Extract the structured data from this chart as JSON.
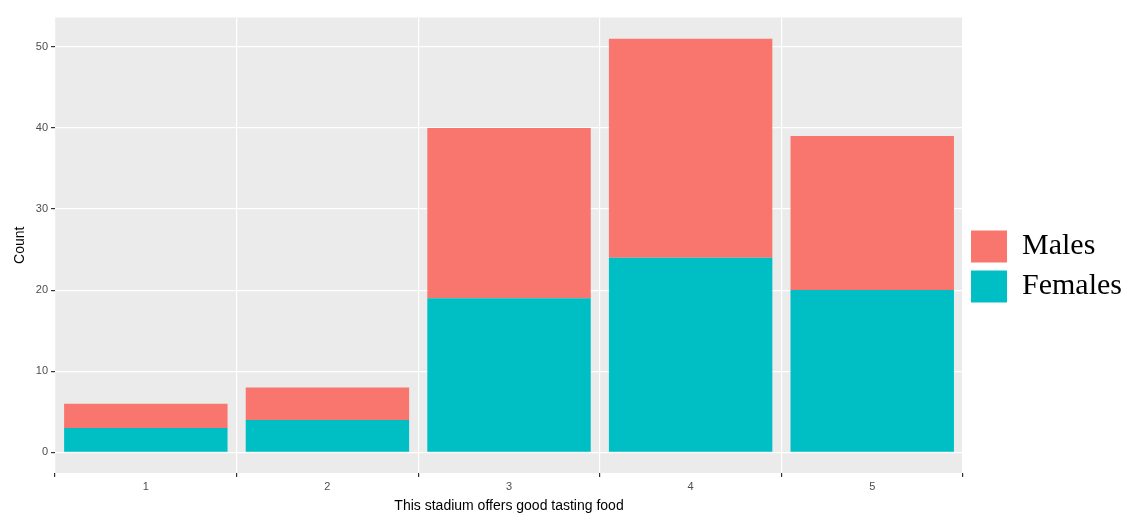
{
  "chart_data": {
    "type": "bar",
    "xlabel": "This stadium offers good tasting food",
    "ylabel": "Count",
    "categories": [
      "1",
      "2",
      "3",
      "4",
      "5"
    ],
    "stacked": true,
    "series": [
      {
        "name": "Females",
        "color": "#00bfc4",
        "values": [
          3,
          4,
          19,
          24,
          20
        ]
      },
      {
        "name": "Males",
        "color": "#f8766d",
        "values": [
          3,
          4,
          21,
          27,
          19
        ]
      }
    ],
    "ylim": [
      -2.55,
      53.6
    ],
    "yticks": [
      0,
      10,
      20,
      30,
      40,
      50
    ],
    "grid": true,
    "legend": "right"
  }
}
